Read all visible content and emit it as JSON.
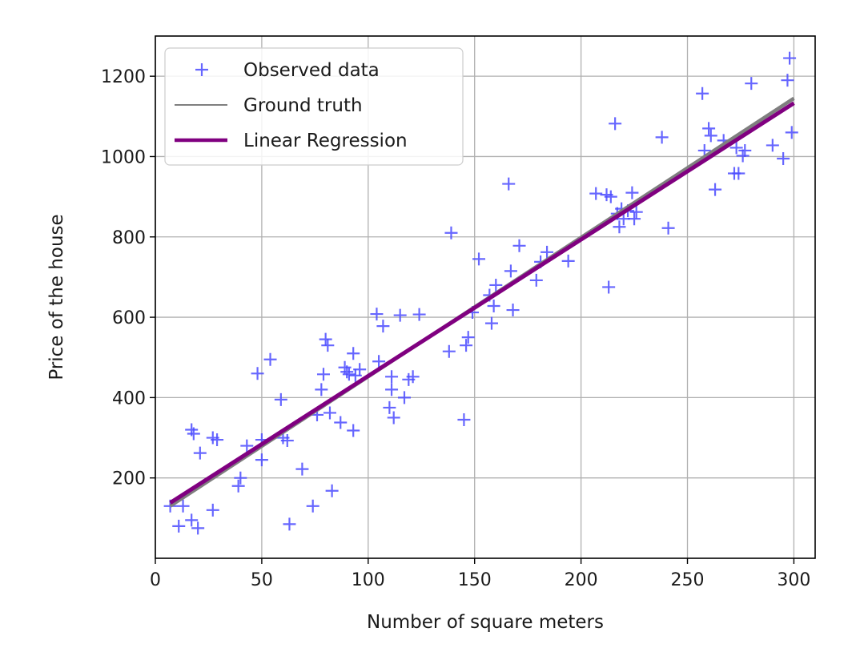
{
  "chart_data": {
    "type": "scatter",
    "xlabel": "Number of square meters",
    "ylabel": "Price of the house",
    "xlim": [
      0,
      310
    ],
    "ylim": [
      0,
      1300
    ],
    "xticks": [
      0,
      50,
      100,
      150,
      200,
      250,
      300
    ],
    "yticks": [
      200,
      400,
      600,
      800,
      1000,
      1200
    ],
    "grid": true,
    "legend_position": "upper-left",
    "series": [
      {
        "name": "Observed data",
        "kind": "scatter",
        "marker": "+",
        "color": "#4b4bff",
        "points": [
          [
            7,
            130
          ],
          [
            11,
            80
          ],
          [
            13,
            130
          ],
          [
            17,
            95
          ],
          [
            17,
            320
          ],
          [
            18,
            310
          ],
          [
            20,
            75
          ],
          [
            21,
            262
          ],
          [
            27,
            120
          ],
          [
            27,
            300
          ],
          [
            29,
            295
          ],
          [
            39,
            180
          ],
          [
            40,
            200
          ],
          [
            43,
            280
          ],
          [
            48,
            460
          ],
          [
            50,
            245
          ],
          [
            50,
            295
          ],
          [
            54,
            495
          ],
          [
            59,
            395
          ],
          [
            60,
            300
          ],
          [
            62,
            293
          ],
          [
            63,
            85
          ],
          [
            69,
            222
          ],
          [
            74,
            130
          ],
          [
            76,
            357
          ],
          [
            78,
            420
          ],
          [
            79,
            458
          ],
          [
            80,
            545
          ],
          [
            81,
            530
          ],
          [
            82,
            362
          ],
          [
            83,
            168
          ],
          [
            87,
            338
          ],
          [
            89,
            475
          ],
          [
            90,
            464
          ],
          [
            91,
            458
          ],
          [
            93,
            510
          ],
          [
            93,
            318
          ],
          [
            94,
            455
          ],
          [
            96,
            470
          ],
          [
            104,
            608
          ],
          [
            105,
            490
          ],
          [
            107,
            578
          ],
          [
            110,
            375
          ],
          [
            111,
            420
          ],
          [
            111,
            452
          ],
          [
            112,
            350
          ],
          [
            115,
            605
          ],
          [
            117,
            400
          ],
          [
            119,
            445
          ],
          [
            121,
            452
          ],
          [
            124,
            607
          ],
          [
            138,
            515
          ],
          [
            139,
            810
          ],
          [
            145,
            345
          ],
          [
            146,
            530
          ],
          [
            147,
            550
          ],
          [
            149,
            612
          ],
          [
            152,
            745
          ],
          [
            157,
            655
          ],
          [
            158,
            585
          ],
          [
            159,
            628
          ],
          [
            160,
            680
          ],
          [
            166,
            932
          ],
          [
            167,
            715
          ],
          [
            168,
            618
          ],
          [
            171,
            778
          ],
          [
            179,
            692
          ],
          [
            181,
            738
          ],
          [
            184,
            762
          ],
          [
            194,
            740
          ],
          [
            207,
            908
          ],
          [
            212,
            905
          ],
          [
            213,
            675
          ],
          [
            214,
            900
          ],
          [
            216,
            1082
          ],
          [
            217,
            858
          ],
          [
            218,
            825
          ],
          [
            219,
            870
          ],
          [
            220,
            845
          ],
          [
            222,
            865
          ],
          [
            224,
            910
          ],
          [
            225,
            845
          ],
          [
            226,
            862
          ],
          [
            238,
            1048
          ],
          [
            241,
            822
          ],
          [
            257,
            1157
          ],
          [
            258,
            1015
          ],
          [
            260,
            1070
          ],
          [
            261,
            1052
          ],
          [
            263,
            918
          ],
          [
            267,
            1040
          ],
          [
            272,
            958
          ],
          [
            273,
            1022
          ],
          [
            274,
            958
          ],
          [
            276,
            1002
          ],
          [
            277,
            1015
          ],
          [
            280,
            1182
          ],
          [
            290,
            1028
          ],
          [
            295,
            995
          ],
          [
            297,
            1190
          ],
          [
            298,
            1245
          ],
          [
            299,
            1060
          ]
        ]
      },
      {
        "name": "Ground truth",
        "kind": "line",
        "color": "#7f7f7f",
        "x": [
          7,
          300
        ],
        "y": [
          130,
          1145
        ]
      },
      {
        "name": "Linear Regression",
        "kind": "line",
        "color": "#800080",
        "x": [
          7,
          300
        ],
        "y": [
          138,
          1133
        ]
      }
    ]
  }
}
